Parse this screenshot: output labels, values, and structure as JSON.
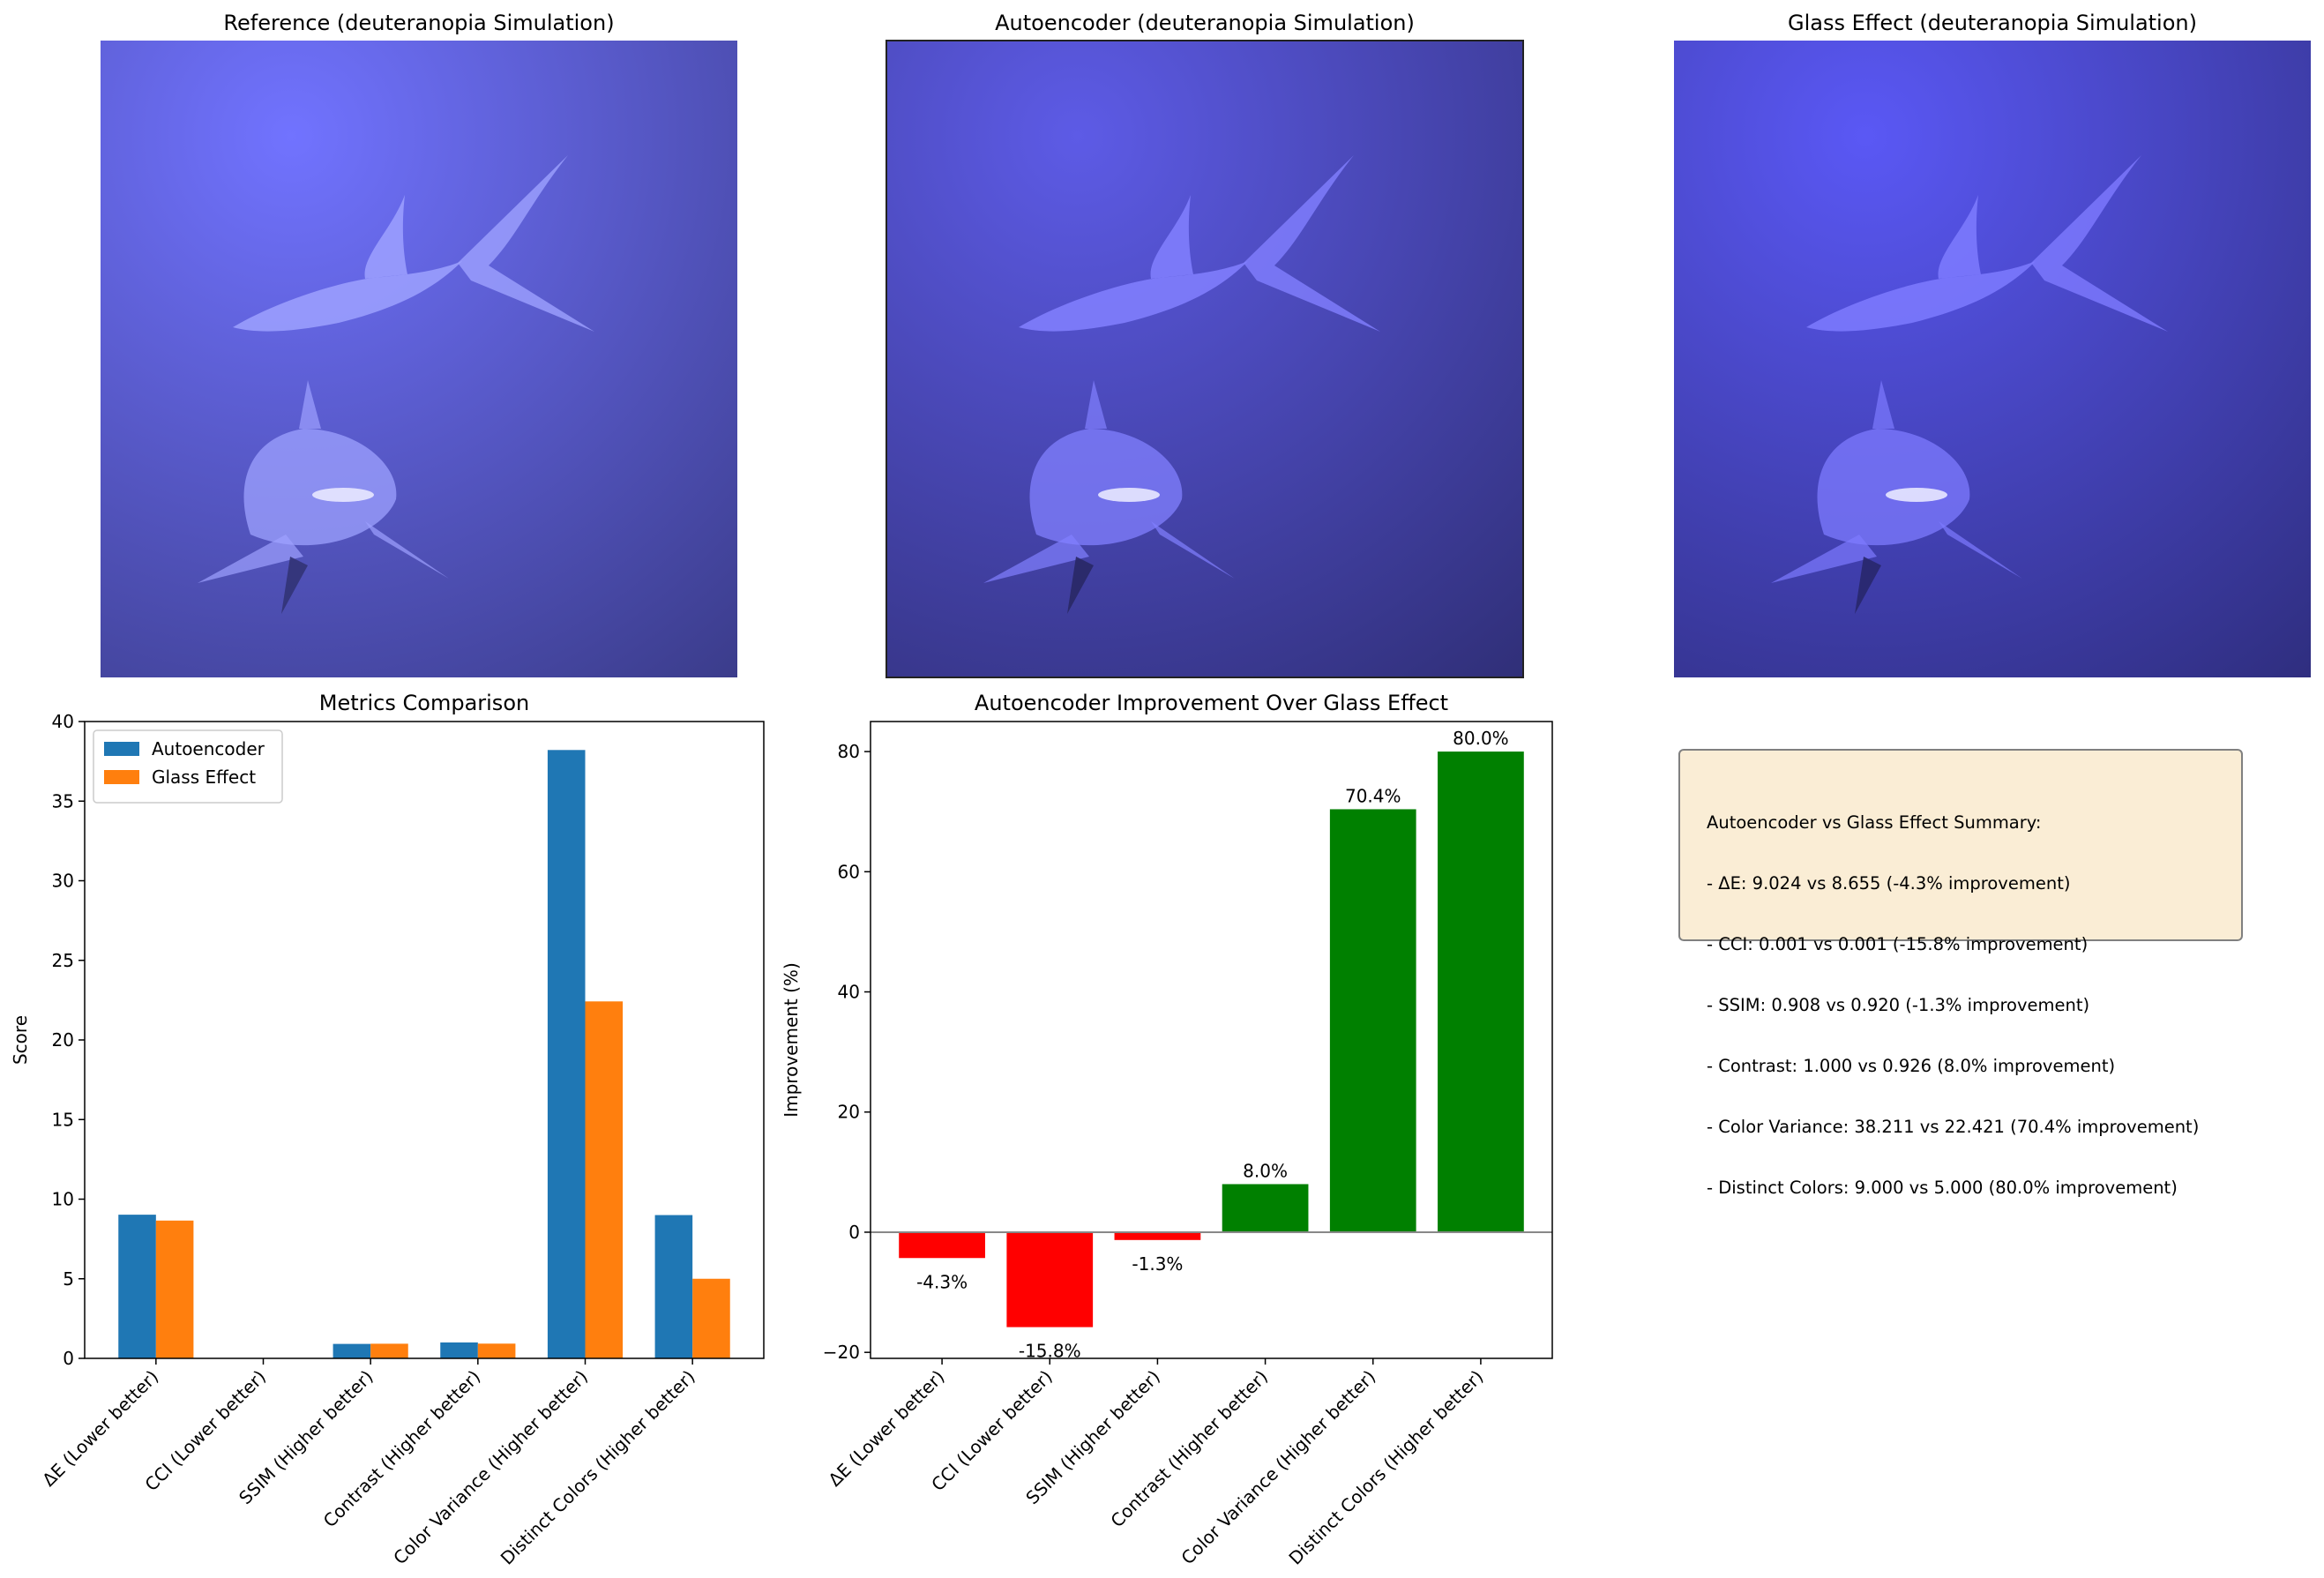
{
  "image_panels": [
    {
      "title": "Reference (deuteranopia Simulation)",
      "tint": "#5a5cd6"
    },
    {
      "title": "Autoencoder (deuteranopia Simulation)",
      "tint": "#4a49b8"
    },
    {
      "title": "Glass Effect (deuteranopia Simulation)",
      "tint": "#4846c4"
    }
  ],
  "chart_data": [
    {
      "type": "bar",
      "title": "Metrics Comparison",
      "xlabel": "",
      "ylabel": "Score",
      "ylim": [
        0,
        40
      ],
      "yticks": [
        0,
        5,
        10,
        15,
        20,
        25,
        30,
        35,
        40
      ],
      "categories": [
        "ΔE (Lower better)",
        "CCI (Lower better)",
        "SSIM (Higher better)",
        "Contrast (Higher better)",
        "Color Variance (Higher better)",
        "Distinct Colors (Higher better)"
      ],
      "series": [
        {
          "name": "Autoencoder",
          "color": "#1f77b4",
          "values": [
            9.024,
            0.001,
            0.908,
            1.0,
            38.211,
            9.0
          ]
        },
        {
          "name": "Glass Effect",
          "color": "#ff7f0e",
          "values": [
            8.655,
            0.001,
            0.92,
            0.926,
            22.421,
            5.0
          ]
        }
      ],
      "legend": "top-left",
      "grid": false
    },
    {
      "type": "bar",
      "title": "Autoencoder Improvement Over Glass Effect",
      "xlabel": "",
      "ylabel": "Improvement (%)",
      "ylim": [
        -21,
        85
      ],
      "yticks": [
        -20,
        0,
        20,
        40,
        60,
        80
      ],
      "categories": [
        "ΔE (Lower better)",
        "CCI (Lower better)",
        "SSIM (Higher better)",
        "Contrast (Higher better)",
        "Color Variance (Higher better)",
        "Distinct Colors (Higher better)"
      ],
      "values": [
        -4.3,
        -15.8,
        -1.3,
        8.0,
        70.4,
        80.0
      ],
      "labels": [
        "-4.3%",
        "-15.8%",
        "-1.3%",
        "8.0%",
        "70.4%",
        "80.0%"
      ],
      "positive_color": "#008000",
      "negative_color": "#ff0000",
      "grid": false
    }
  ],
  "summary": {
    "lines": [
      "Autoencoder vs Glass Effect Summary:",
      "- ΔE: 9.024 vs 8.655 (-4.3% improvement)",
      "- CCI: 0.001 vs 0.001 (-15.8% improvement)",
      "- SSIM: 0.908 vs 0.920 (-1.3% improvement)",
      "- Contrast: 1.000 vs 0.926 (8.0% improvement)",
      "- Color Variance: 38.211 vs 22.421 (70.4% improvement)",
      "- Distinct Colors: 9.000 vs 5.000 (80.0% improvement)"
    ]
  }
}
